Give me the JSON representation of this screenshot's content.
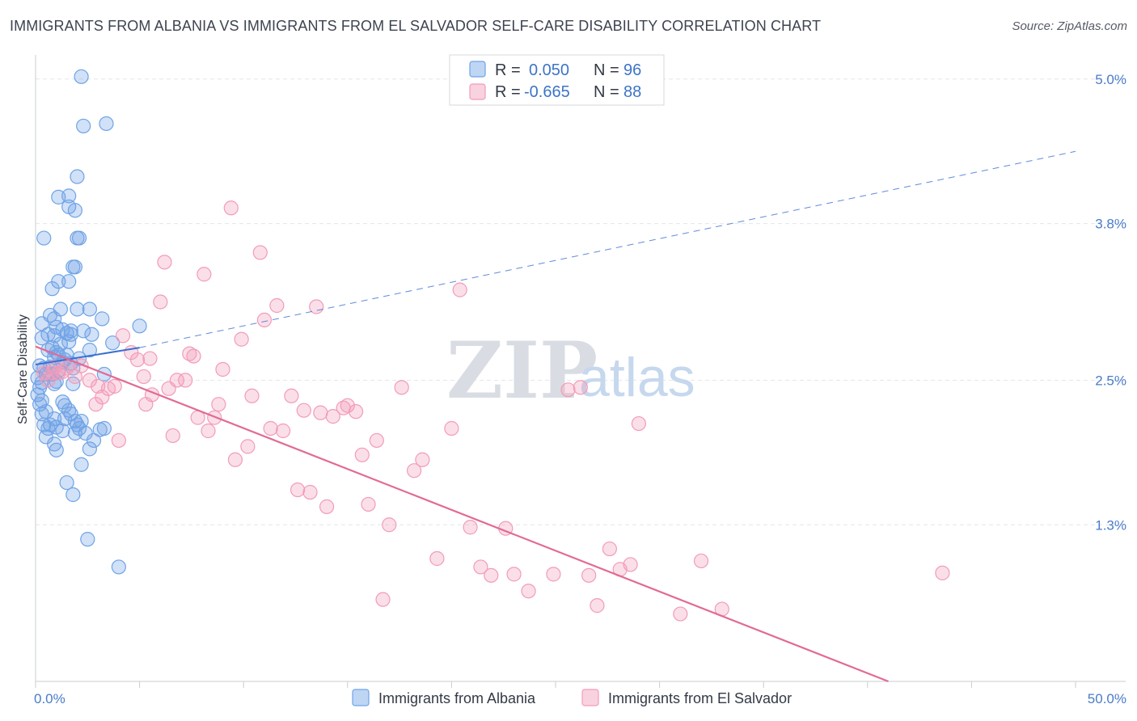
{
  "title": "IMMIGRANTS FROM ALBANIA VS IMMIGRANTS FROM EL SALVADOR SELF-CARE DISABILITY CORRELATION CHART",
  "source": "Source: ZipAtlas.com",
  "watermark": {
    "zip": "ZIP",
    "atlas": "atlas"
  },
  "colors": {
    "albania": "#6fa3e6",
    "albania_line": "#3b6fd1",
    "el_salvador": "#f29bb8",
    "el_salvador_line": "#e26a96",
    "tick_text": "#4a7cc9",
    "grid": "#e3e6ea"
  },
  "legend": {
    "rows": [
      {
        "r_label": "R =",
        "r_value": "0.050",
        "n_label": "N =",
        "n_value": "96"
      },
      {
        "r_label": "R =",
        "r_value": "-0.665",
        "n_label": "N =",
        "n_value": "88"
      }
    ]
  },
  "chart_data": {
    "type": "scatter",
    "xlabel": "",
    "ylabel": "Self-Care Disability",
    "xlim": [
      0,
      50
    ],
    "ylim": [
      0,
      5.2
    ],
    "x_tick_labels": [
      "0.0%",
      "50.0%"
    ],
    "y_ticks": [
      1.3,
      2.5,
      3.8,
      5.0
    ],
    "y_tick_labels": [
      "1.3%",
      "2.5%",
      "3.8%",
      "5.0%"
    ],
    "grid": "horizontal dashed",
    "legend_position": "top-center",
    "series": [
      {
        "name": "Immigrants from Albania",
        "r": 0.05,
        "n": 96,
        "trend": {
          "x0": 0,
          "y0": 2.63,
          "x1": 5.0,
          "y1": 2.77,
          "x_end": 50,
          "y_end": 4.4
        },
        "points": [
          [
            2.2,
            5.02
          ],
          [
            2.3,
            4.61
          ],
          [
            3.4,
            4.63
          ],
          [
            2.0,
            4.19
          ],
          [
            1.6,
            4.03
          ],
          [
            1.1,
            4.02
          ],
          [
            1.6,
            3.94
          ],
          [
            1.9,
            3.91
          ],
          [
            0.4,
            3.68
          ],
          [
            2.0,
            3.68
          ],
          [
            2.1,
            3.68
          ],
          [
            1.8,
            3.44
          ],
          [
            1.9,
            3.44
          ],
          [
            1.1,
            3.32
          ],
          [
            1.6,
            3.32
          ],
          [
            0.8,
            3.26
          ],
          [
            1.2,
            3.09
          ],
          [
            2.0,
            3.09
          ],
          [
            2.6,
            3.09
          ],
          [
            0.7,
            3.04
          ],
          [
            0.9,
            3.01
          ],
          [
            3.2,
            3.01
          ],
          [
            0.3,
            2.97
          ],
          [
            5.0,
            2.95
          ],
          [
            1.0,
            2.94
          ],
          [
            1.3,
            2.92
          ],
          [
            1.7,
            2.91
          ],
          [
            2.3,
            2.91
          ],
          [
            1.5,
            2.89
          ],
          [
            0.6,
            2.88
          ],
          [
            0.9,
            2.87
          ],
          [
            1.7,
            2.88
          ],
          [
            2.7,
            2.88
          ],
          [
            0.3,
            2.85
          ],
          [
            1.6,
            2.82
          ],
          [
            3.7,
            2.81
          ],
          [
            1.2,
            2.8
          ],
          [
            0.8,
            2.77
          ],
          [
            0.6,
            2.75
          ],
          [
            2.6,
            2.75
          ],
          [
            1.0,
            2.73
          ],
          [
            1.1,
            2.71
          ],
          [
            1.5,
            2.71
          ],
          [
            0.9,
            2.69
          ],
          [
            2.1,
            2.68
          ],
          [
            1.4,
            2.67
          ],
          [
            1.3,
            2.65
          ],
          [
            1.7,
            2.64
          ],
          [
            0.2,
            2.62
          ],
          [
            0.7,
            2.61
          ],
          [
            0.4,
            2.6
          ],
          [
            1.1,
            2.58
          ],
          [
            1.8,
            2.6
          ],
          [
            0.5,
            2.55
          ],
          [
            0.8,
            2.55
          ],
          [
            3.3,
            2.55
          ],
          [
            0.1,
            2.52
          ],
          [
            1.0,
            2.49
          ],
          [
            0.3,
            2.48
          ],
          [
            0.9,
            2.47
          ],
          [
            1.8,
            2.47
          ],
          [
            0.2,
            2.44
          ],
          [
            0.1,
            2.38
          ],
          [
            0.3,
            2.33
          ],
          [
            1.3,
            2.32
          ],
          [
            0.2,
            2.3
          ],
          [
            1.4,
            2.29
          ],
          [
            0.5,
            2.24
          ],
          [
            0.3,
            2.22
          ],
          [
            1.6,
            2.25
          ],
          [
            1.7,
            2.22
          ],
          [
            0.9,
            2.18
          ],
          [
            1.4,
            2.18
          ],
          [
            1.9,
            2.16
          ],
          [
            2.2,
            2.16
          ],
          [
            0.4,
            2.13
          ],
          [
            0.7,
            2.13
          ],
          [
            2.0,
            2.13
          ],
          [
            1.0,
            2.11
          ],
          [
            2.1,
            2.1
          ],
          [
            0.6,
            2.1
          ],
          [
            1.3,
            2.08
          ],
          [
            1.9,
            2.06
          ],
          [
            2.4,
            2.06
          ],
          [
            3.1,
            2.09
          ],
          [
            3.3,
            2.1
          ],
          [
            0.5,
            2.03
          ],
          [
            2.8,
            2.0
          ],
          [
            1.0,
            1.92
          ],
          [
            2.6,
            1.93
          ],
          [
            2.2,
            1.8
          ],
          [
            1.5,
            1.65
          ],
          [
            1.8,
            1.55
          ],
          [
            0.9,
            1.97
          ],
          [
            2.5,
            1.18
          ],
          [
            4.0,
            0.95
          ]
        ]
      },
      {
        "name": "Immigrants from El Salvador",
        "r": -0.665,
        "n": 88,
        "trend": {
          "x0": 0,
          "y0": 2.78,
          "x1": 41.0,
          "y1": 0.0
        },
        "points": [
          [
            0.4,
            2.56
          ],
          [
            0.6,
            2.5
          ],
          [
            0.8,
            2.56
          ],
          [
            1.1,
            2.56
          ],
          [
            1.5,
            2.6
          ],
          [
            1.9,
            2.53
          ],
          [
            2.2,
            2.62
          ],
          [
            2.6,
            2.5
          ],
          [
            3.0,
            2.45
          ],
          [
            3.5,
            2.43
          ],
          [
            4.2,
            2.87
          ],
          [
            4.6,
            2.73
          ],
          [
            4.9,
            2.67
          ],
          [
            5.5,
            2.68
          ],
          [
            5.2,
            2.53
          ],
          [
            5.6,
            2.38
          ],
          [
            3.8,
            2.45
          ],
          [
            4.0,
            2.0
          ],
          [
            5.3,
            2.3
          ],
          [
            6.0,
            3.15
          ],
          [
            6.2,
            3.48
          ],
          [
            6.4,
            2.43
          ],
          [
            6.6,
            2.04
          ],
          [
            6.8,
            2.5
          ],
          [
            7.2,
            2.5
          ],
          [
            7.4,
            2.72
          ],
          [
            7.6,
            2.7
          ],
          [
            7.8,
            2.19
          ],
          [
            8.1,
            3.38
          ],
          [
            8.3,
            2.08
          ],
          [
            8.6,
            2.19
          ],
          [
            8.8,
            2.3
          ],
          [
            9.0,
            2.59
          ],
          [
            9.4,
            3.93
          ],
          [
            9.6,
            1.84
          ],
          [
            9.9,
            2.84
          ],
          [
            10.2,
            1.95
          ],
          [
            10.4,
            2.37
          ],
          [
            10.8,
            3.56
          ],
          [
            11.0,
            3.0
          ],
          [
            11.3,
            2.1
          ],
          [
            11.6,
            3.12
          ],
          [
            11.9,
            2.08
          ],
          [
            12.3,
            2.37
          ],
          [
            12.6,
            1.59
          ],
          [
            12.9,
            2.25
          ],
          [
            13.2,
            1.57
          ],
          [
            13.5,
            3.11
          ],
          [
            13.7,
            2.23
          ],
          [
            14.0,
            1.45
          ],
          [
            14.3,
            2.2
          ],
          [
            14.8,
            2.27
          ],
          [
            15.0,
            2.29
          ],
          [
            15.4,
            2.24
          ],
          [
            15.7,
            1.88
          ],
          [
            16.0,
            1.47
          ],
          [
            16.4,
            2.0
          ],
          [
            16.7,
            0.68
          ],
          [
            17.0,
            1.3
          ],
          [
            17.6,
            2.44
          ],
          [
            18.2,
            1.75
          ],
          [
            18.6,
            1.84
          ],
          [
            19.3,
            1.02
          ],
          [
            20.0,
            2.1
          ],
          [
            20.4,
            3.25
          ],
          [
            20.9,
            1.28
          ],
          [
            21.4,
            0.95
          ],
          [
            21.9,
            0.88
          ],
          [
            22.6,
            1.27
          ],
          [
            23.0,
            0.89
          ],
          [
            23.7,
            0.75
          ],
          [
            24.9,
            0.89
          ],
          [
            25.6,
            2.42
          ],
          [
            26.2,
            2.44
          ],
          [
            26.6,
            0.88
          ],
          [
            27.0,
            0.63
          ],
          [
            27.6,
            1.1
          ],
          [
            28.1,
            0.93
          ],
          [
            28.6,
            0.97
          ],
          [
            29.0,
            2.14
          ],
          [
            31.0,
            0.56
          ],
          [
            32.0,
            1.0
          ],
          [
            33.0,
            0.6
          ],
          [
            43.6,
            0.9
          ],
          [
            2.9,
            2.3
          ],
          [
            3.2,
            2.36
          ],
          [
            0.9,
            2.61
          ],
          [
            1.3,
            2.57
          ]
        ]
      }
    ]
  },
  "bottom_legend": [
    "Immigrants from Albania",
    "Immigrants from El Salvador"
  ]
}
